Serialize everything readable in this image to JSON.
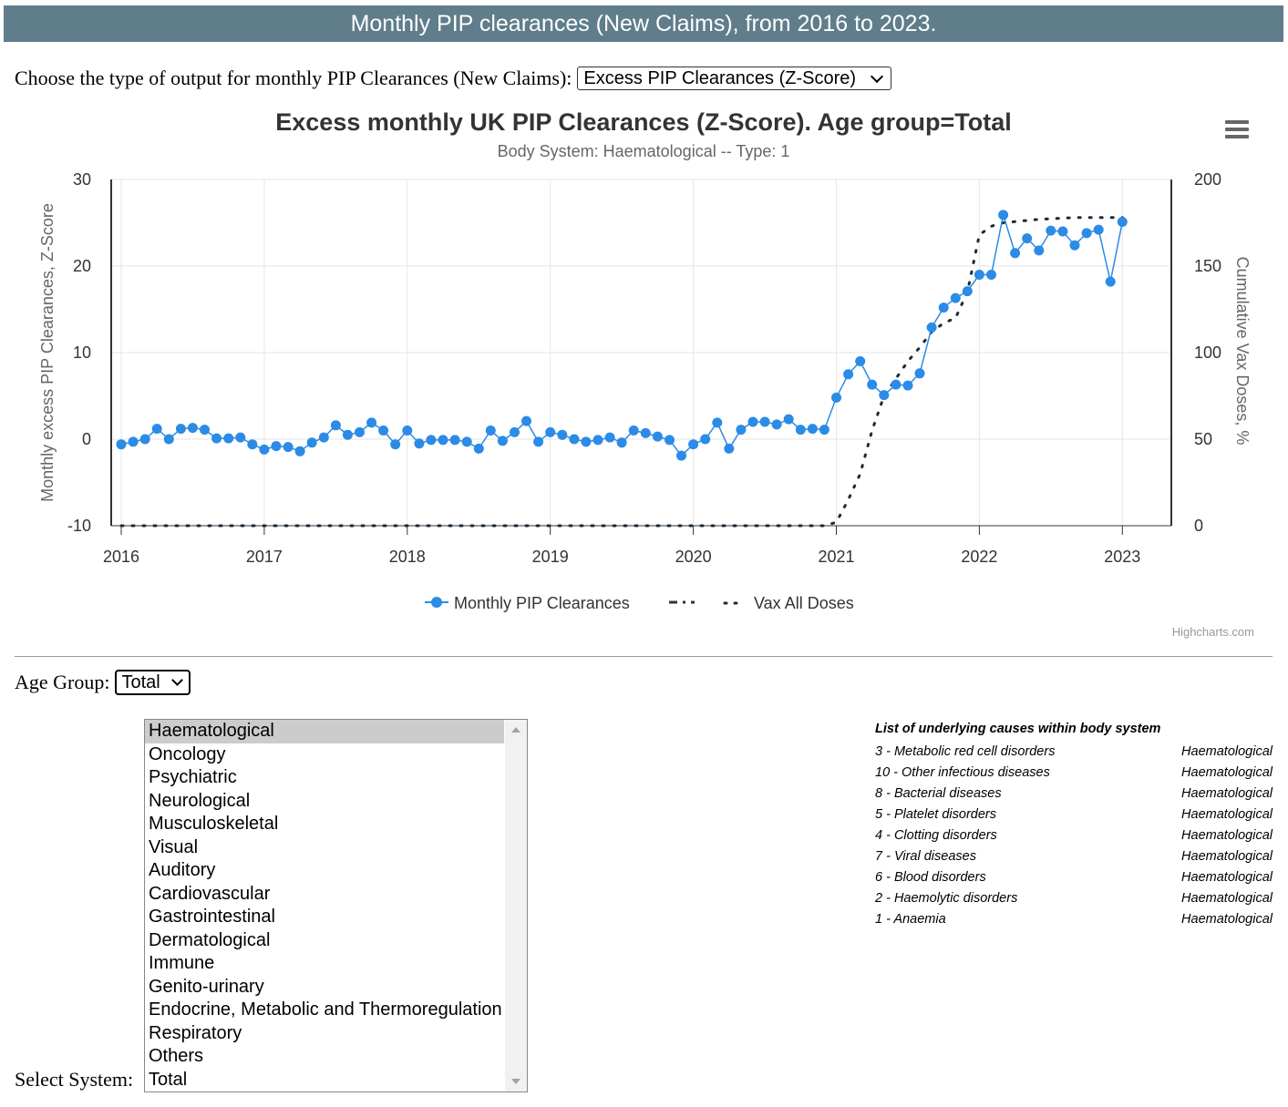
{
  "banner": {
    "title": "Monthly PIP clearances (New Claims), from 2016 to 2023."
  },
  "output_type": {
    "label": "Choose the type of output for monthly PIP Clearances (New Claims):",
    "selected": "Excess PIP Clearances (Z-Score)"
  },
  "chart_data": {
    "type": "line",
    "title": "Excess monthly UK PIP Clearances (Z-Score). Age group=Total",
    "subtitle": "Body System: Haematological -- Type: 1",
    "ylabel": "Monthly excess PIP Clearances, Z-Score",
    "y2label": "Cumulative Vax Doses, %",
    "ylim": [
      -10,
      30
    ],
    "y2lim": [
      0,
      200
    ],
    "yticks": [
      "30",
      "20",
      "10",
      "0",
      "-10"
    ],
    "y2ticks": [
      "200",
      "150",
      "100",
      "50",
      "0"
    ],
    "xticks": [
      "2016",
      "2017",
      "2018",
      "2019",
      "2020",
      "2021",
      "2022",
      "2023"
    ],
    "x_start": "2016-01",
    "series": [
      {
        "name": "Monthly PIP Clearances",
        "color": "#2b8be6",
        "values": [
          -0.6,
          -0.3,
          0.0,
          1.2,
          0.0,
          1.2,
          1.3,
          1.1,
          0.1,
          0.1,
          0.2,
          -0.6,
          -1.2,
          -0.8,
          -0.9,
          -1.4,
          -0.4,
          0.2,
          1.6,
          0.5,
          0.8,
          1.9,
          1.0,
          -0.6,
          1.0,
          -0.5,
          -0.1,
          -0.1,
          -0.1,
          -0.3,
          -1.1,
          1.0,
          -0.2,
          0.8,
          2.1,
          -0.3,
          0.8,
          0.5,
          0.0,
          -0.3,
          -0.1,
          0.2,
          -0.4,
          1.0,
          0.7,
          0.3,
          -0.1,
          -1.9,
          -0.6,
          0.0,
          1.9,
          -1.1,
          1.1,
          2.0,
          2.0,
          1.7,
          2.3,
          1.1,
          1.2,
          1.1,
          4.8,
          7.5,
          9.0,
          6.3,
          5.1,
          6.3,
          6.2,
          7.6,
          12.9,
          15.2,
          16.3,
          17.1,
          19.0,
          19.0,
          25.9,
          21.5,
          23.2,
          21.8,
          24.1,
          24.0,
          22.4,
          23.8,
          24.2,
          18.2,
          25.1
        ]
      },
      {
        "name": "Vax All Doses",
        "color": "#1a2a3a",
        "x": [
          "2016-01",
          "2020-12",
          "2021-01",
          "2021-02",
          "2021-03",
          "2021-04",
          "2021-05",
          "2021-06",
          "2021-07",
          "2021-08",
          "2021-09",
          "2021-10",
          "2021-11",
          "2021-12",
          "2022-01",
          "2022-02",
          "2022-03",
          "2022-06",
          "2022-09",
          "2023-01"
        ],
        "values": [
          0,
          0,
          2,
          15,
          30,
          55,
          75,
          85,
          95,
          103,
          112,
          117,
          120,
          135,
          168,
          173,
          175,
          177,
          178,
          178
        ]
      }
    ],
    "legend": [
      "Monthly PIP Clearances",
      "Vax All Doses"
    ],
    "legend_position": "bottom",
    "credits": "Highcharts.com"
  },
  "age_group": {
    "label": "Age Group:",
    "selected": "Total"
  },
  "system_select": {
    "label": "Select System:",
    "options": [
      "Haematological",
      "Oncology",
      "Psychiatric",
      "Neurological",
      "Musculoskeletal",
      "Visual",
      "Auditory",
      "Cardiovascular",
      "Gastrointestinal",
      "Dermatological",
      "Immune",
      "Genito-urinary",
      "Endocrine, Metabolic and Thermoregulation",
      "Respiratory",
      "Others",
      "Total"
    ],
    "selected_index": 0
  },
  "causes": {
    "header": "List of underlying causes within body system",
    "rows": [
      {
        "cause": "3 - Metabolic red cell disorders",
        "system": "Haematological"
      },
      {
        "cause": "10 - Other infectious diseases",
        "system": "Haematological"
      },
      {
        "cause": "8 - Bacterial diseases",
        "system": "Haematological"
      },
      {
        "cause": "5 - Platelet disorders",
        "system": "Haematological"
      },
      {
        "cause": "4 - Clotting disorders",
        "system": "Haematological"
      },
      {
        "cause": "7 - Viral diseases",
        "system": "Haematological"
      },
      {
        "cause": "6 - Blood disorders",
        "system": "Haematological"
      },
      {
        "cause": "2 - Haemolytic disorders",
        "system": "Haematological"
      },
      {
        "cause": "1 - Anaemia",
        "system": "Haematological"
      }
    ]
  }
}
